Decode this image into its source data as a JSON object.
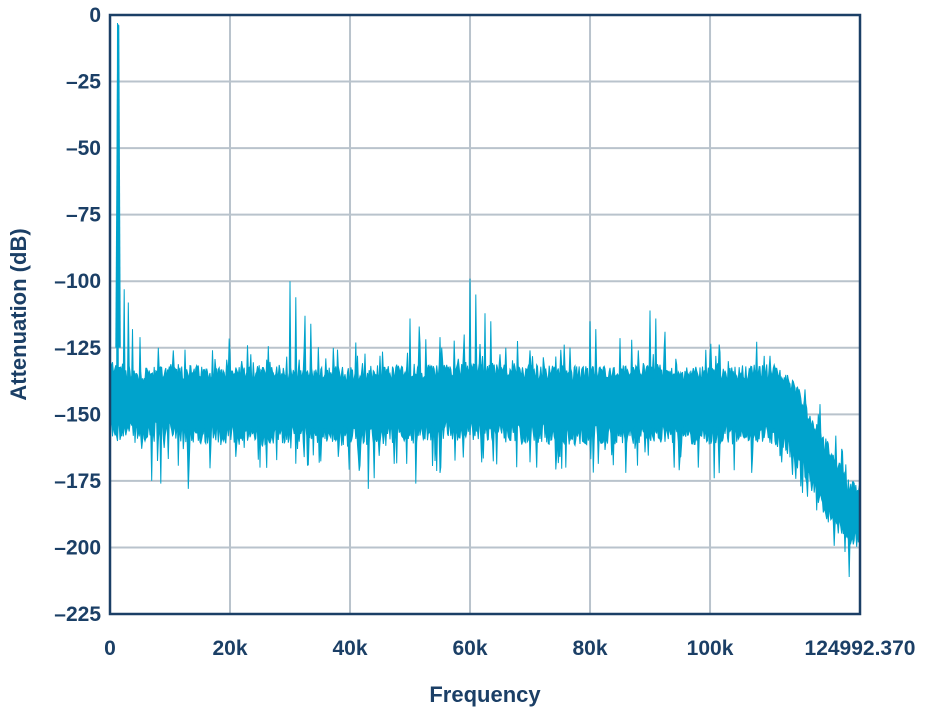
{
  "chart_data": {
    "type": "area",
    "title": "",
    "xlabel": "Frequency",
    "ylabel": "Attenuation (dB)",
    "xlim": [
      0,
      124992.37
    ],
    "ylim": [
      -225,
      0
    ],
    "x_ticks": [
      {
        "value": 0,
        "label": "0"
      },
      {
        "value": 20000,
        "label": "20k"
      },
      {
        "value": 40000,
        "label": "40k"
      },
      {
        "value": 60000,
        "label": "60k"
      },
      {
        "value": 80000,
        "label": "80k"
      },
      {
        "value": 100000,
        "label": "100k"
      },
      {
        "value": 124992.37,
        "label": "124992.370"
      }
    ],
    "y_ticks": [
      {
        "value": 0,
        "label": "0"
      },
      {
        "value": -25,
        "label": "–25"
      },
      {
        "value": -50,
        "label": "–50"
      },
      {
        "value": -75,
        "label": "–75"
      },
      {
        "value": -100,
        "label": "–100"
      },
      {
        "value": -125,
        "label": "–125"
      },
      {
        "value": -150,
        "label": "–150"
      },
      {
        "value": -175,
        "label": "–175"
      },
      {
        "value": -200,
        "label": "–200"
      },
      {
        "value": -225,
        "label": "–225"
      }
    ],
    "grid": true,
    "series_color": "#00a3cc",
    "spectrum": {
      "envelope_upper": [
        [
          0,
          -133
        ],
        [
          1000,
          -131
        ],
        [
          2000,
          -134
        ],
        [
          5000,
          -136
        ],
        [
          10000,
          -134
        ],
        [
          20000,
          -135
        ],
        [
          30000,
          -134
        ],
        [
          40000,
          -135
        ],
        [
          50000,
          -134
        ],
        [
          60000,
          -133
        ],
        [
          70000,
          -134
        ],
        [
          80000,
          -135
        ],
        [
          90000,
          -134
        ],
        [
          100000,
          -135
        ],
        [
          108000,
          -134
        ],
        [
          111000,
          -134
        ],
        [
          113000,
          -138
        ],
        [
          115000,
          -144
        ],
        [
          117000,
          -153
        ],
        [
          119000,
          -161
        ],
        [
          121000,
          -168
        ],
        [
          123000,
          -177
        ],
        [
          124992,
          -178
        ]
      ],
      "envelope_lower": [
        [
          0,
          -155
        ],
        [
          1000,
          -157
        ],
        [
          2000,
          -156
        ],
        [
          5000,
          -157
        ],
        [
          10000,
          -156
        ],
        [
          20000,
          -158
        ],
        [
          30000,
          -157
        ],
        [
          40000,
          -158
        ],
        [
          50000,
          -157
        ],
        [
          60000,
          -156
        ],
        [
          70000,
          -157
        ],
        [
          80000,
          -158
        ],
        [
          90000,
          -157
        ],
        [
          100000,
          -158
        ],
        [
          108000,
          -157
        ],
        [
          111000,
          -158
        ],
        [
          113000,
          -162
        ],
        [
          115000,
          -168
        ],
        [
          117000,
          -176
        ],
        [
          119000,
          -184
        ],
        [
          121000,
          -192
        ],
        [
          123000,
          -196
        ],
        [
          124992,
          -197
        ]
      ],
      "peaks": [
        [
          1300,
          -3
        ],
        [
          2300,
          -103
        ],
        [
          3000,
          -108
        ],
        [
          3800,
          -118
        ],
        [
          5000,
          -121
        ],
        [
          8000,
          -125
        ],
        [
          10500,
          -126
        ],
        [
          20000,
          -127
        ],
        [
          22000,
          -130
        ],
        [
          30000,
          -100
        ],
        [
          31000,
          -106
        ],
        [
          32500,
          -113
        ],
        [
          33500,
          -116
        ],
        [
          36000,
          -129
        ],
        [
          41000,
          -123
        ],
        [
          45000,
          -128
        ],
        [
          50000,
          -114
        ],
        [
          51500,
          -117
        ],
        [
          55000,
          -121
        ],
        [
          59000,
          -120
        ],
        [
          60000,
          -99
        ],
        [
          61000,
          -105
        ],
        [
          62500,
          -112
        ],
        [
          63500,
          -115
        ],
        [
          66000,
          -125
        ],
        [
          70000,
          -126
        ],
        [
          80000,
          -115
        ],
        [
          81000,
          -118
        ],
        [
          87000,
          -122
        ],
        [
          88000,
          -126
        ],
        [
          90000,
          -111
        ],
        [
          91000,
          -114
        ],
        [
          92500,
          -119
        ],
        [
          100000,
          -128
        ],
        [
          103000,
          -130
        ],
        [
          110000,
          -128
        ]
      ],
      "dips": [
        [
          1300,
          -160
        ],
        [
          7000,
          -175
        ],
        [
          8500,
          -176
        ],
        [
          13000,
          -178
        ],
        [
          21000,
          -166
        ],
        [
          25000,
          -170
        ],
        [
          33000,
          -169
        ],
        [
          38000,
          -166
        ],
        [
          43000,
          -178
        ],
        [
          44000,
          -174
        ],
        [
          51000,
          -176
        ],
        [
          55000,
          -172
        ],
        [
          62000,
          -168
        ],
        [
          70000,
          -168
        ],
        [
          76000,
          -170
        ],
        [
          80500,
          -166
        ],
        [
          86000,
          -172
        ],
        [
          94000,
          -170
        ],
        [
          98000,
          -170
        ],
        [
          104000,
          -171
        ],
        [
          107000,
          -172
        ],
        [
          112000,
          -168
        ]
      ],
      "upper_spikes": [
        [
          113000,
          -148
        ],
        [
          118000,
          -150
        ],
        [
          121000,
          -158
        ],
        [
          122000,
          -163
        ]
      ]
    }
  }
}
